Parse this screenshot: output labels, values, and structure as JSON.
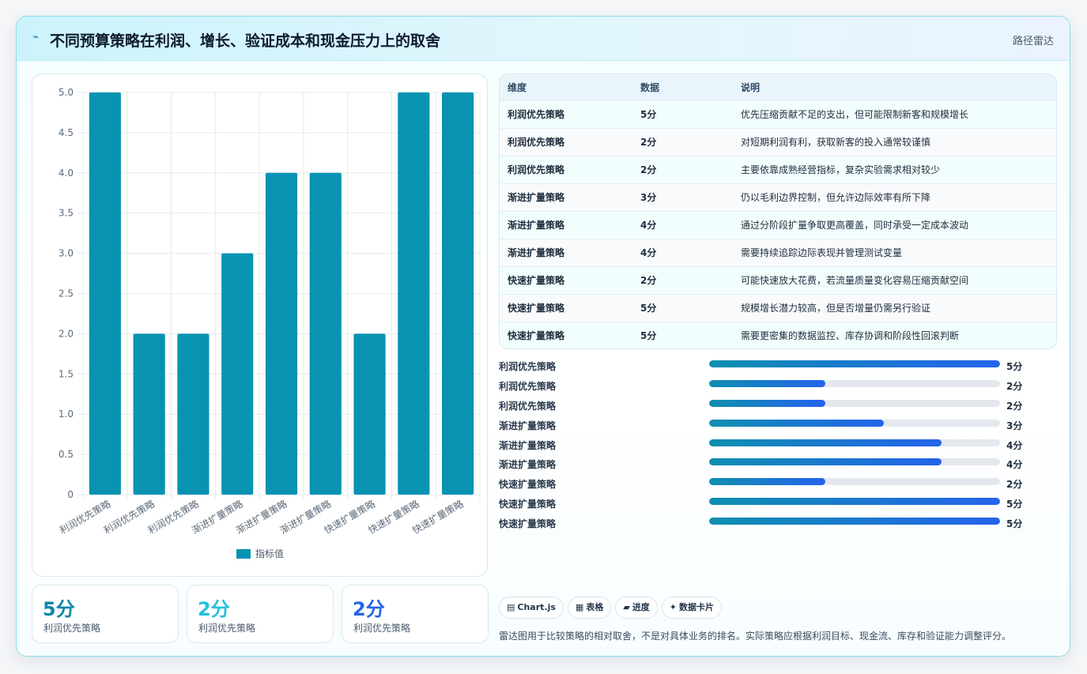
{
  "header": {
    "icon": "trend-icon",
    "title": "不同预算策略在利润、增长、验证成本和现金压力上的取舍",
    "tag": "路径雷达"
  },
  "chart_data": {
    "type": "bar",
    "categories": [
      "利润优先策略",
      "利润优先策略",
      "利润优先策略",
      "渐进扩量策略",
      "渐进扩量策略",
      "渐进扩量策略",
      "快速扩量策略",
      "快速扩量策略",
      "快速扩量策略"
    ],
    "series": [
      {
        "name": "指标值",
        "values": [
          5,
          2,
          2,
          3,
          4,
          4,
          2,
          5,
          5
        ]
      }
    ],
    "yticks": [
      "0",
      "0.5",
      "1.0",
      "1.5",
      "2.0",
      "2.5",
      "3.0",
      "3.5",
      "4.0",
      "4.5",
      "5.0"
    ],
    "ylim": [
      0,
      5
    ],
    "grid": true,
    "legend": "bottom",
    "bar_color": "#0893b2"
  },
  "kpis": [
    {
      "value": "5分",
      "label": "利润优先策略",
      "color": "#0b87a8"
    },
    {
      "value": "2分",
      "label": "利润优先策略",
      "color": "#22c1dd"
    },
    {
      "value": "2分",
      "label": "利润优先策略",
      "color": "#2563eb"
    }
  ],
  "table": {
    "headers": [
      "维度",
      "数据",
      "说明"
    ],
    "rows": [
      [
        "利润优先策略",
        "5分",
        "优先压缩贡献不足的支出，但可能限制新客和规模增长"
      ],
      [
        "利润优先策略",
        "2分",
        "对短期利润有利，获取新客的投入通常较谨慎"
      ],
      [
        "利润优先策略",
        "2分",
        "主要依靠成熟经营指标，复杂实验需求相对较少"
      ],
      [
        "渐进扩量策略",
        "3分",
        "仍以毛利边界控制，但允许边际效率有所下降"
      ],
      [
        "渐进扩量策略",
        "4分",
        "通过分阶段扩量争取更高覆盖，同时承受一定成本波动"
      ],
      [
        "渐进扩量策略",
        "4分",
        "需要持续追踪边际表现并管理测试变量"
      ],
      [
        "快速扩量策略",
        "2分",
        "可能快速放大花费，若流量质量变化容易压缩贡献空间"
      ],
      [
        "快速扩量策略",
        "5分",
        "规模增长潜力较高，但是否增量仍需另行验证"
      ],
      [
        "快速扩量策略",
        "5分",
        "需要更密集的数据监控、库存协调和阶段性回滚判断"
      ]
    ]
  },
  "progress": {
    "max": 5,
    "items": [
      {
        "label": "利润优先策略",
        "value": 5,
        "text": "5分"
      },
      {
        "label": "利润优先策略",
        "value": 2,
        "text": "2分"
      },
      {
        "label": "利润优先策略",
        "value": 2,
        "text": "2分"
      },
      {
        "label": "渐进扩量策略",
        "value": 3,
        "text": "3分"
      },
      {
        "label": "渐进扩量策略",
        "value": 4,
        "text": "4分"
      },
      {
        "label": "渐进扩量策略",
        "value": 4,
        "text": "4分"
      },
      {
        "label": "快速扩量策略",
        "value": 2,
        "text": "2分"
      },
      {
        "label": "快速扩量策略",
        "value": 5,
        "text": "5分"
      },
      {
        "label": "快速扩量策略",
        "value": 5,
        "text": "5分"
      }
    ]
  },
  "chips": [
    {
      "icon": "chart-icon",
      "glyph": "▤",
      "label": "Chart.js"
    },
    {
      "icon": "table-icon",
      "glyph": "▦",
      "label": "表格"
    },
    {
      "icon": "progress-icon",
      "glyph": "▰",
      "label": "进度"
    },
    {
      "icon": "sparkle-icon",
      "glyph": "✦",
      "label": "数据卡片"
    }
  ],
  "note": "雷达图用于比较策略的相对取舍，不是对具体业务的排名。实际策略应根据利润目标、现金流、库存和验证能力调整评分。"
}
